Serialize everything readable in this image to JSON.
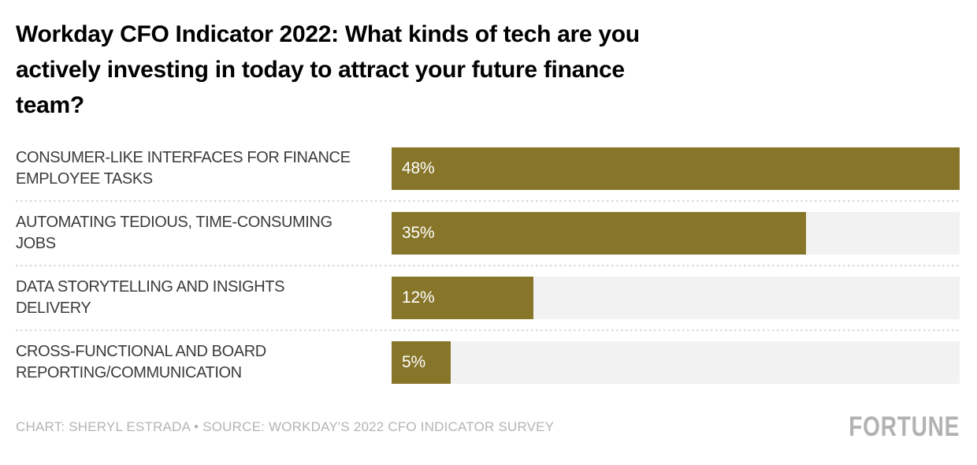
{
  "title": "Workday CFO Indicator 2022: What kinds of tech are you\nactively investing in today to attract your future finance\nteam?",
  "chart_data": {
    "type": "bar",
    "orientation": "horizontal",
    "title": "Workday CFO Indicator 2022: What kinds of tech are you actively investing in today to attract your future finance team?",
    "categories": [
      "CONSUMER-LIKE INTERFACES FOR FINANCE EMPLOYEE TASKS",
      "AUTOMATING TEDIOUS, TIME-CONSUMING JOBS",
      "DATA STORYTELLING AND INSIGHTS DELIVERY",
      "CROSS-FUNCTIONAL AND BOARD REPORTING/COMMUNICATION"
    ],
    "categories_wrapped": [
      "CONSUMER-LIKE INTERFACES FOR FINANCE\nEMPLOYEE TASKS",
      "AUTOMATING TEDIOUS, TIME-CONSUMING\nJOBS",
      "DATA STORYTELLING AND INSIGHTS\nDELIVERY",
      "CROSS-FUNCTIONAL AND BOARD\nREPORTING/COMMUNICATION"
    ],
    "values": [
      48,
      35,
      12,
      5
    ],
    "value_labels": [
      "48%",
      "35%",
      "12%",
      "5%"
    ],
    "xlabel": "",
    "ylabel": "",
    "xlim": [
      0,
      48
    ],
    "grid": false,
    "legend": false,
    "bar_color": "#87762a",
    "track_color": "#f2f2f2",
    "value_label_color": "#ffffff"
  },
  "footer": {
    "credit": "CHART: SHERYL ESTRADA • SOURCE: WORKDAY'S 2022 CFO INDICATOR SURVEY",
    "logo": "FORTUNE"
  },
  "colors": {
    "title": "#000000",
    "label": "#3b3b3b",
    "separator": "#d8d8d8",
    "footer_text": "#b4b4b4",
    "logo": "#b2b2b2"
  }
}
